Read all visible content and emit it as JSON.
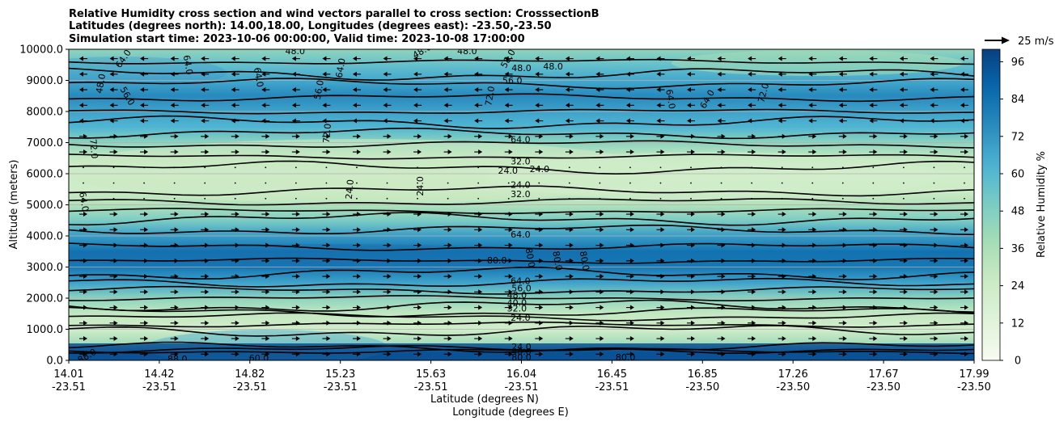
{
  "chart_data": {
    "type": "contourf",
    "title_lines": [
      "Relative Humidity cross section and wind vectors parallel to cross section: CrosssectionB",
      "Latitudes (degrees north): 14.00,18.00, Longitudes (degrees east): -23.50,-23.50",
      "Simulation start time: 2023-10-06 00:00:00, Valid time: 2023-10-08 17:00:00"
    ],
    "xlabel": "Latitude (degrees N)",
    "xlabel2": "Longitude (degrees E)",
    "ylabel": "Altitude (meters)",
    "ylim": [
      0,
      10000
    ],
    "yticks": [
      "0.0",
      "1000.0",
      "2000.0",
      "3000.0",
      "4000.0",
      "5000.0",
      "6000.0",
      "7000.0",
      "8000.0",
      "9000.0",
      "10000.0"
    ],
    "ytick_values": [
      0,
      1000,
      2000,
      3000,
      4000,
      5000,
      6000,
      7000,
      8000,
      9000,
      10000
    ],
    "xtick_fractions": [
      0,
      0.1,
      0.2,
      0.3,
      0.4,
      0.5,
      0.6,
      0.7,
      0.8,
      0.9,
      1.0
    ],
    "xticks_lat": [
      "14.01",
      "14.42",
      "14.82",
      "15.23",
      "15.63",
      "16.04",
      "16.45",
      "16.85",
      "17.26",
      "17.67",
      "17.99"
    ],
    "xticks_lon": [
      "-23.51",
      "-23.51",
      "-23.51",
      "-23.51",
      "-23.51",
      "-23.51",
      "-23.51",
      "-23.50",
      "-23.50",
      "-23.50",
      "-23.50"
    ],
    "colorbar_label": "Relative Humidity %",
    "colorbar_range": [
      0,
      100
    ],
    "colorbar_ticks": [
      "0",
      "12",
      "24",
      "36",
      "48",
      "60",
      "72",
      "84",
      "96"
    ],
    "colorbar_tick_values": [
      0,
      12,
      24,
      36,
      48,
      60,
      72,
      84,
      96
    ],
    "quiver_key": "25 m/s",
    "humidity_profile": [
      {
        "z": 0,
        "rh": 92
      },
      {
        "z": 250,
        "rh": 88
      },
      {
        "z": 500,
        "rh": 40
      },
      {
        "z": 1000,
        "rh": 22
      },
      {
        "z": 1500,
        "rh": 28
      },
      {
        "z": 2000,
        "rh": 45
      },
      {
        "z": 2500,
        "rh": 68
      },
      {
        "z": 3000,
        "rh": 82
      },
      {
        "z": 3500,
        "rh": 84
      },
      {
        "z": 4000,
        "rh": 70
      },
      {
        "z": 4500,
        "rh": 50
      },
      {
        "z": 5000,
        "rh": 34
      },
      {
        "z": 5500,
        "rh": 24
      },
      {
        "z": 6000,
        "rh": 22
      },
      {
        "z": 6500,
        "rh": 28
      },
      {
        "z": 7000,
        "rh": 45
      },
      {
        "z": 7500,
        "rh": 62
      },
      {
        "z": 8000,
        "rh": 68
      },
      {
        "z": 8500,
        "rh": 76
      },
      {
        "z": 9000,
        "rh": 66
      },
      {
        "z": 9500,
        "rh": 56
      },
      {
        "z": 10000,
        "rh": 44
      }
    ],
    "contour_altitudes": [
      300,
      350,
      420,
      950,
      1150,
      1400,
      1550,
      1750,
      2000,
      2250,
      2500,
      2800,
      3200,
      3650,
      4200,
      4550,
      4800,
      5100,
      5450,
      6200,
      6550,
      6950,
      7300,
      7650,
      8000,
      8450,
      8900,
      9200,
      9600
    ],
    "contour_labels": [
      {
        "text": "64.0",
        "x": 0.06,
        "z": 9700,
        "rot": -55
      },
      {
        "text": "64.0",
        "x": 0.132,
        "z": 9500,
        "rot": 80
      },
      {
        "text": "48.0",
        "x": 0.25,
        "z": 9950,
        "rot": 0
      },
      {
        "text": "64.0",
        "x": 0.21,
        "z": 9100,
        "rot": 80
      },
      {
        "text": "64.0",
        "x": 0.3,
        "z": 9400,
        "rot": -80
      },
      {
        "text": "48.0",
        "x": 0.39,
        "z": 9950,
        "rot": -30
      },
      {
        "text": "48.0",
        "x": 0.44,
        "z": 9950,
        "rot": 0
      },
      {
        "text": "58.0",
        "x": 0.485,
        "z": 9700,
        "rot": -60
      },
      {
        "text": "48.0",
        "x": 0.5,
        "z": 9400,
        "rot": 0
      },
      {
        "text": "48.0",
        "x": 0.535,
        "z": 9450,
        "rot": 0
      },
      {
        "text": "56.0",
        "x": 0.49,
        "z": 9000,
        "rot": 0
      },
      {
        "text": "48.0",
        "x": 0.035,
        "z": 8900,
        "rot": -80
      },
      {
        "text": "56.0",
        "x": 0.065,
        "z": 8500,
        "rot": 60
      },
      {
        "text": "56.0",
        "x": 0.276,
        "z": 8700,
        "rot": -80
      },
      {
        "text": "72.0",
        "x": 0.465,
        "z": 8500,
        "rot": -80
      },
      {
        "text": "64.0",
        "x": 0.665,
        "z": 8400,
        "rot": 80
      },
      {
        "text": "64.0",
        "x": 0.705,
        "z": 8400,
        "rot": -60
      },
      {
        "text": "72.0",
        "x": 0.767,
        "z": 8600,
        "rot": -75
      },
      {
        "text": "72.0",
        "x": 0.285,
        "z": 7300,
        "rot": -85
      },
      {
        "text": "72.0",
        "x": 0.028,
        "z": 6800,
        "rot": 85
      },
      {
        "text": "64.0",
        "x": 0.499,
        "z": 7100,
        "rot": 0
      },
      {
        "text": "32.0",
        "x": 0.499,
        "z": 6400,
        "rot": 0
      },
      {
        "text": "24.0",
        "x": 0.485,
        "z": 6100,
        "rot": 0
      },
      {
        "text": "24.0",
        "x": 0.52,
        "z": 6150,
        "rot": 0
      },
      {
        "text": "24.0",
        "x": 0.388,
        "z": 5600,
        "rot": -90
      },
      {
        "text": "24.0",
        "x": 0.31,
        "z": 5500,
        "rot": -85
      },
      {
        "text": "24.0",
        "x": 0.499,
        "z": 5650,
        "rot": 0
      },
      {
        "text": "32.0",
        "x": 0.499,
        "z": 5350,
        "rot": 0
      },
      {
        "text": "64.0",
        "x": 0.017,
        "z": 5100,
        "rot": 80
      },
      {
        "text": "64.0",
        "x": 0.499,
        "z": 4050,
        "rot": 0
      },
      {
        "text": "80.0",
        "x": 0.473,
        "z": 3220,
        "rot": 0
      },
      {
        "text": "80.0",
        "x": 0.51,
        "z": 3300,
        "rot": 80
      },
      {
        "text": "80.0",
        "x": 0.54,
        "z": 3200,
        "rot": 80
      },
      {
        "text": "80.0",
        "x": 0.57,
        "z": 3200,
        "rot": 80
      },
      {
        "text": "64.0",
        "x": 0.499,
        "z": 2560,
        "rot": 0
      },
      {
        "text": "56.0",
        "x": 0.5,
        "z": 2320,
        "rot": 0
      },
      {
        "text": "48.0",
        "x": 0.495,
        "z": 2100,
        "rot": 0
      },
      {
        "text": "40.0",
        "x": 0.495,
        "z": 1860,
        "rot": 0
      },
      {
        "text": "32.0",
        "x": 0.495,
        "z": 1680,
        "rot": 0
      },
      {
        "text": "24.0",
        "x": 0.499,
        "z": 1380,
        "rot": 0
      },
      {
        "text": "24.0",
        "x": 0.5,
        "z": 440,
        "rot": 0
      },
      {
        "text": "40.0",
        "x": 0.5,
        "z": 280,
        "rot": 0
      },
      {
        "text": "80.0",
        "x": 0.5,
        "z": 110,
        "rot": 0
      },
      {
        "text": "88.0",
        "x": 0.02,
        "z": 150,
        "rot": -30
      },
      {
        "text": "88.0",
        "x": 0.12,
        "z": 50,
        "rot": 0
      },
      {
        "text": "60.0",
        "x": 0.21,
        "z": 80,
        "rot": 0
      },
      {
        "text": "80.0",
        "x": 0.615,
        "z": 100,
        "rot": 0
      }
    ],
    "wind_rows": [
      {
        "z": 9700,
        "dir": -1
      },
      {
        "z": 9200,
        "dir": -1
      },
      {
        "z": 8700,
        "dir": -1
      },
      {
        "z": 8200,
        "dir": -1
      },
      {
        "z": 7700,
        "dir": -1
      },
      {
        "z": 7200,
        "dir": 1
      },
      {
        "z": 6700,
        "dir": 1
      },
      {
        "z": 6200,
        "dir": 0
      },
      {
        "z": 5700,
        "dir": 0
      },
      {
        "z": 5200,
        "dir": 0
      },
      {
        "z": 4700,
        "dir": 1
      },
      {
        "z": 4200,
        "dir": 1
      },
      {
        "z": 3700,
        "dir": 1
      },
      {
        "z": 3200,
        "dir": 1
      },
      {
        "z": 2700,
        "dir": 1
      },
      {
        "z": 2200,
        "dir": 1
      },
      {
        "z": 1700,
        "dir": 1
      },
      {
        "z": 1200,
        "dir": 1
      },
      {
        "z": 700,
        "dir": 1
      },
      {
        "z": 200,
        "dir": 1
      }
    ]
  }
}
